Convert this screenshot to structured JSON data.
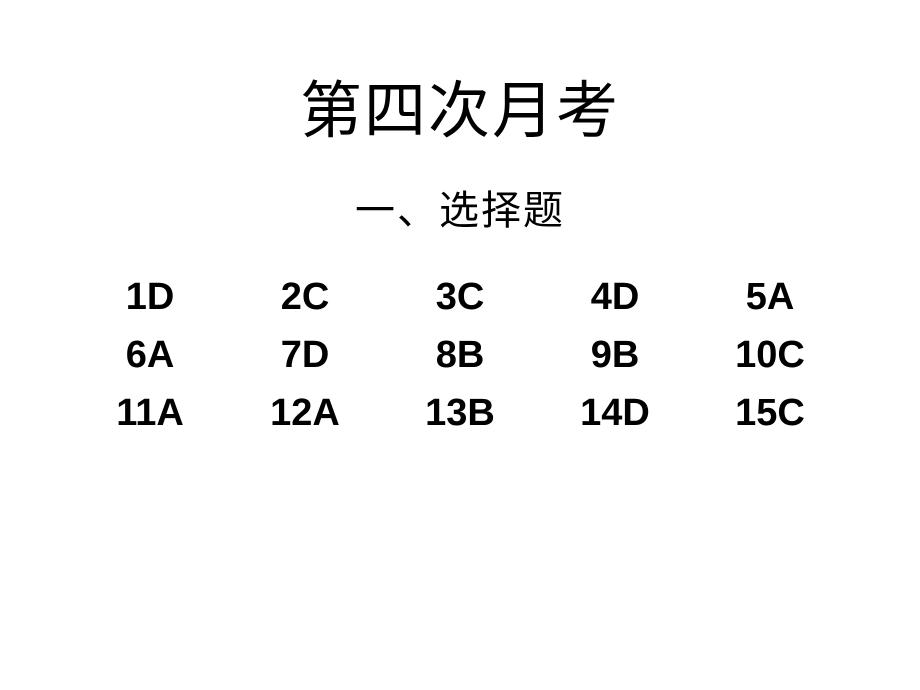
{
  "title": "第四次月考",
  "subtitle": "一、选择题",
  "title_fontsize": 62,
  "subtitle_fontsize": 40,
  "answer_fontsize": 38,
  "text_color": "#000000",
  "background_color": "#ffffff",
  "answers": {
    "rows": [
      [
        "1D",
        "2C",
        "3C",
        "4D",
        "5A"
      ],
      [
        "6A",
        "7D",
        "8B",
        "9B",
        "10C"
      ],
      [
        "11A",
        "12A",
        "13B",
        "14D",
        "15C"
      ]
    ]
  },
  "row0": {
    "c0": "1D",
    "c1": "2C",
    "c2": "3C",
    "c3": "4D",
    "c4": "5A"
  },
  "row1": {
    "c0": "6A",
    "c1": "7D",
    "c2": "8B",
    "c3": "9B",
    "c4": "10C"
  },
  "row2": {
    "c0": "11A",
    "c1": "12A",
    "c2": "13B",
    "c3": "14D",
    "c4": "15C"
  }
}
